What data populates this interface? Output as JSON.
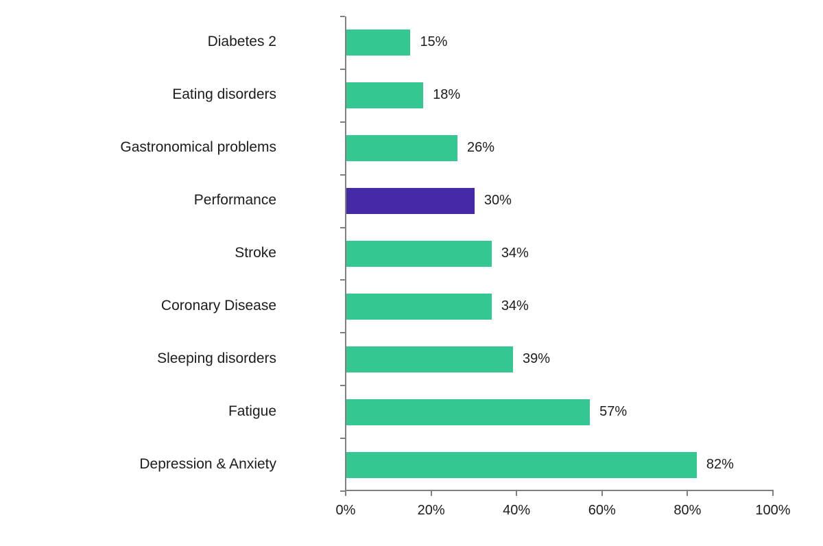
{
  "chart_data": {
    "type": "bar",
    "orientation": "horizontal",
    "title": "",
    "xlabel": "",
    "ylabel": "",
    "grid": false,
    "legend": "none",
    "xlim": [
      0,
      100
    ],
    "categories": [
      "Diabetes 2",
      "Eating disorders",
      "Gastronomical problems",
      "Performance",
      "Stroke",
      "Coronary Disease",
      "Sleeping disorders",
      "Fatigue",
      "Depression & Anxiety"
    ],
    "values": [
      15,
      18,
      26,
      30,
      34,
      34,
      39,
      57,
      82
    ],
    "value_labels": [
      "15%",
      "18%",
      "26%",
      "30%",
      "34%",
      "34%",
      "39%",
      "57%",
      "82%"
    ],
    "highlighted_category": "Performance",
    "x_ticks": [
      "0%",
      "20%",
      "40%",
      "60%",
      "80%",
      "100%"
    ],
    "x_tick_values": [
      0,
      20,
      40,
      60,
      80,
      100
    ],
    "colors": {
      "bar": "#35C792",
      "highlight_bar": "#4629A6",
      "axis": "#7F7F7F",
      "text": "#1C1C1C",
      "background": "#FFFFFF"
    }
  }
}
